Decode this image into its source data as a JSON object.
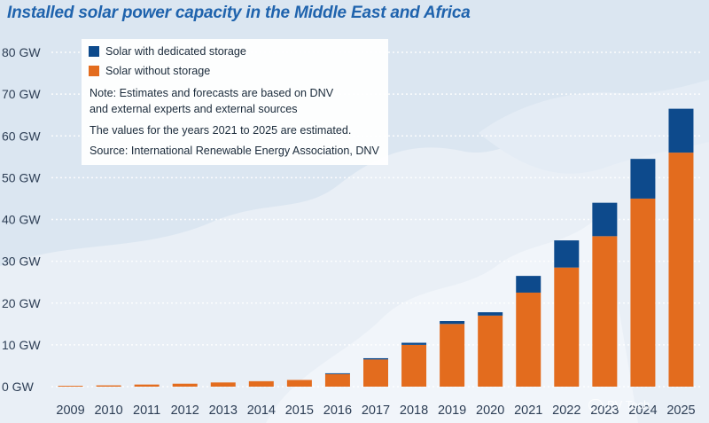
{
  "chart_data": {
    "type": "bar",
    "stacked": true,
    "title": "Installed solar power capacity in the Middle East and Africa",
    "categories": [
      "2009",
      "2010",
      "2011",
      "2012",
      "2013",
      "2014",
      "2015",
      "2016",
      "2017",
      "2018",
      "2019",
      "2020",
      "2021",
      "2022",
      "2023",
      "2024",
      "2025"
    ],
    "y_tick_labels": [
      "0 GW",
      "10 GW",
      "20 GW",
      "30 GW",
      "40 GW",
      "50 GW",
      "60 GW",
      "70 GW",
      "80 GW"
    ],
    "ylim": [
      0,
      80
    ],
    "grid": true,
    "legend_placement": "top-left",
    "series": [
      {
        "name": "Solar without storage",
        "color": "#e36c1e",
        "values": [
          0.2,
          0.3,
          0.5,
          0.7,
          1.0,
          1.3,
          1.6,
          3.0,
          6.5,
          10.0,
          15.0,
          17.0,
          22.5,
          28.5,
          36.0,
          45.0,
          56.0
        ]
      },
      {
        "name": "Solar with dedicated storage",
        "color": "#0d4a8c",
        "values": [
          0.0,
          0.0,
          0.0,
          0.0,
          0.0,
          0.0,
          0.0,
          0.2,
          0.3,
          0.5,
          0.7,
          0.8,
          4.0,
          6.5,
          8.0,
          9.5,
          10.5
        ]
      }
    ],
    "legend": [
      {
        "label": "Solar with dedicated storage",
        "color": "#0d4a8c"
      },
      {
        "label": "Solar without storage",
        "color": "#e36c1e"
      }
    ],
    "notes": [
      "Note: Estimates and forecasts are based on DNV",
      "and external experts and external sources",
      "The values for the years 2021 to 2025 are estimated.",
      "Source:  International Renewable Energy Association, DNV"
    ]
  },
  "watermark": "PV Tech"
}
